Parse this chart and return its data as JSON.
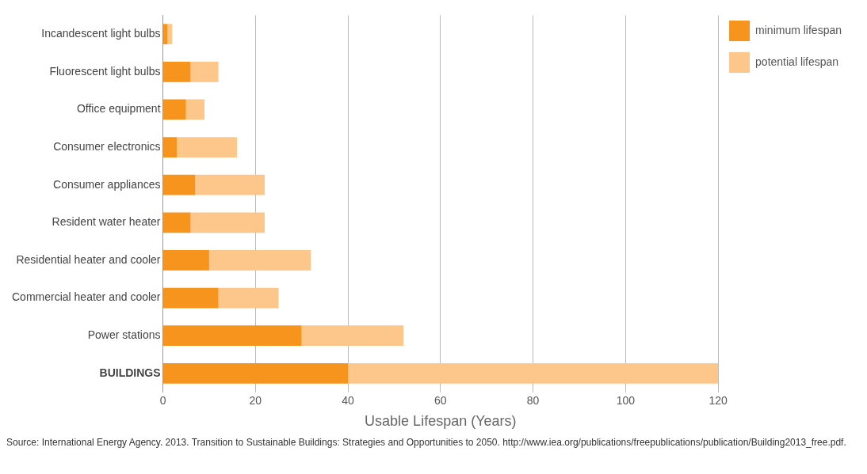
{
  "chart_data": {
    "type": "bar",
    "orientation": "horizontal",
    "stacked": true,
    "categories": [
      "Incandescent light bulbs",
      "Fluorescent light bulbs",
      "Office equipment",
      "Consumer electronics",
      "Consumer appliances",
      "Resident water heater",
      "Residential heater and cooler",
      "Commercial heater and cooler",
      "Power stations",
      "BUILDINGS"
    ],
    "series": [
      {
        "name": "minimum lifespan",
        "color": "#f7941d",
        "values": [
          1,
          6,
          5,
          3,
          7,
          6,
          10,
          12,
          30,
          40
        ]
      },
      {
        "name": "potential lifespan",
        "color": "#fdc68a",
        "values": [
          1,
          6,
          4,
          13,
          15,
          16,
          22,
          13,
          22,
          80
        ]
      }
    ],
    "xlabel": "Usable Lifespan (Years)",
    "xlim": [
      0,
      120
    ],
    "xticks": [
      0,
      20,
      40,
      60,
      80,
      100,
      120
    ],
    "grid": "x",
    "legend": "top right",
    "annotations": [
      "Source: International Energy Agency. 2013. Transition to Sustainable Buildings: Strategies and Opportunities to 2050. http://www.iea.org/publications/freepublications/publication/Building2013_free.pdf."
    ]
  }
}
